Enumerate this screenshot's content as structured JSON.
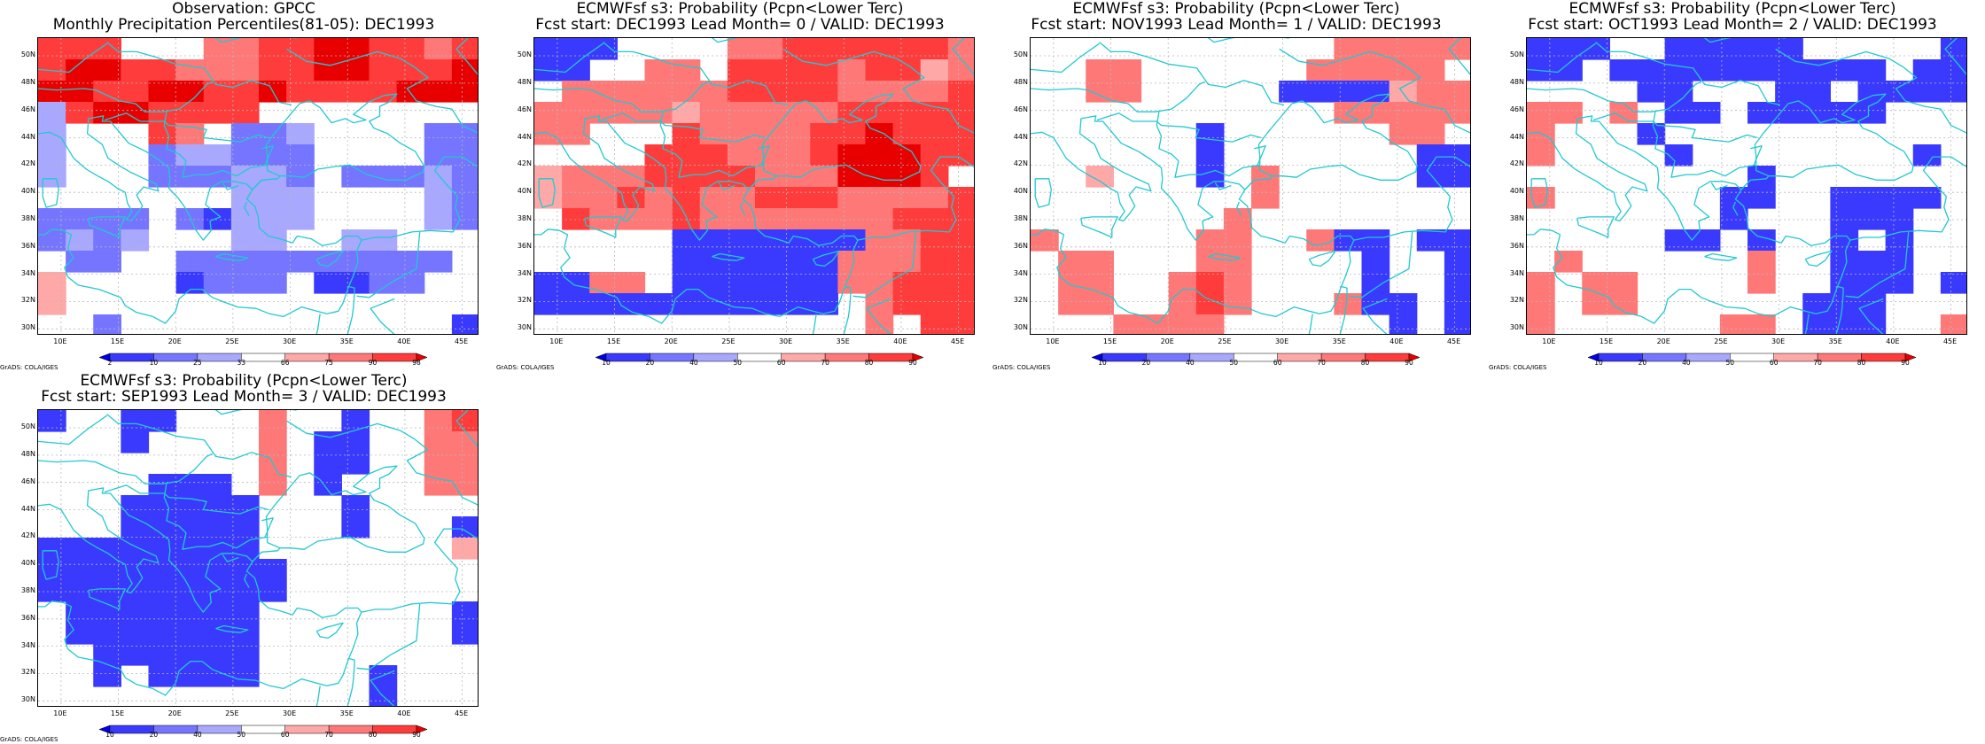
{
  "colors": {
    "coast": "#22c8d0",
    "grid": "#b8b8b8",
    "bins": [
      "#0000e8",
      "#3a3aff",
      "#7575ff",
      "#a8a8ff",
      "#ffffff",
      "#ffa8a8",
      "#ff7878",
      "#ff3c3c",
      "#e80000"
    ]
  },
  "ticks": {
    "lat": [
      "50N",
      "48N",
      "46N",
      "44N",
      "42N",
      "40N",
      "38N",
      "36N",
      "34N",
      "32N",
      "30N"
    ],
    "lon": [
      "10E",
      "15E",
      "20E",
      "25E",
      "30E",
      "35E",
      "40E",
      "45E"
    ]
  },
  "panels": [
    {
      "title1": "Observation: GPCC",
      "title2": "Monthly Precipitation Percentiles(81-05): DEC1993",
      "colorbar_labels": [
        "2",
        "10",
        "25",
        "33",
        "66",
        "75",
        "90",
        "98"
      ],
      "credit": "GrADS: COLA/IGES",
      "grid": [
        [
          7,
          7,
          7,
          4,
          4,
          4,
          6,
          6,
          7,
          7,
          8,
          8,
          7,
          7,
          6,
          7
        ],
        [
          7,
          8,
          8,
          7,
          7,
          6,
          6,
          6,
          7,
          7,
          8,
          8,
          7,
          7,
          7,
          8
        ],
        [
          8,
          8,
          7,
          7,
          8,
          8,
          7,
          7,
          8,
          7,
          7,
          7,
          7,
          8,
          8,
          8
        ],
        [
          3,
          7,
          8,
          8,
          7,
          7,
          7,
          7,
          4,
          4,
          4,
          4,
          4,
          4,
          4,
          4
        ],
        [
          3,
          4,
          4,
          4,
          7,
          6,
          4,
          2,
          2,
          3,
          4,
          4,
          4,
          4,
          2,
          2
        ],
        [
          3,
          4,
          4,
          4,
          2,
          3,
          3,
          2,
          2,
          2,
          4,
          4,
          4,
          4,
          2,
          2
        ],
        [
          3,
          4,
          4,
          4,
          2,
          2,
          2,
          3,
          3,
          2,
          4,
          2,
          2,
          2,
          3,
          2
        ],
        [
          4,
          4,
          4,
          4,
          4,
          4,
          4,
          3,
          3,
          3,
          4,
          4,
          4,
          4,
          3,
          2
        ],
        [
          2,
          2,
          2,
          2,
          4,
          2,
          1,
          3,
          3,
          3,
          4,
          4,
          4,
          4,
          3,
          2
        ],
        [
          2,
          3,
          2,
          3,
          4,
          4,
          4,
          3,
          3,
          4,
          4,
          3,
          3,
          4,
          4,
          4
        ],
        [
          4,
          2,
          2,
          4,
          4,
          2,
          2,
          2,
          2,
          2,
          2,
          2,
          2,
          2,
          2,
          4
        ],
        [
          5,
          4,
          4,
          4,
          4,
          1,
          2,
          2,
          2,
          4,
          1,
          1,
          2,
          2,
          4,
          4
        ],
        [
          5,
          4,
          4,
          4,
          4,
          4,
          4,
          4,
          4,
          4,
          4,
          4,
          4,
          4,
          4,
          4
        ],
        [
          4,
          4,
          2,
          4,
          4,
          4,
          4,
          4,
          4,
          4,
          4,
          4,
          4,
          4,
          4,
          1
        ]
      ]
    },
    {
      "title1": "ECMWFsf s3: Probability (Pcpn<Lower Terc)",
      "title2": "Fcst start: DEC1993  Lead Month= 0 / VALID: DEC1993",
      "colorbar_labels": [
        "10",
        "20",
        "40",
        "50",
        "60",
        "70",
        "80",
        "90"
      ],
      "credit": "GrADS: COLA/IGES",
      "grid": [
        [
          1,
          1,
          1,
          4,
          4,
          4,
          4,
          6,
          6,
          7,
          7,
          7,
          7,
          7,
          7,
          6
        ],
        [
          1,
          1,
          4,
          4,
          6,
          6,
          4,
          7,
          7,
          7,
          7,
          6,
          7,
          7,
          5,
          6
        ],
        [
          4,
          6,
          6,
          6,
          6,
          6,
          6,
          7,
          7,
          7,
          7,
          6,
          6,
          6,
          6,
          7
        ],
        [
          6,
          6,
          6,
          6,
          6,
          5,
          6,
          6,
          6,
          6,
          6,
          7,
          7,
          7,
          7,
          7
        ],
        [
          6,
          6,
          4,
          4,
          4,
          7,
          6,
          6,
          6,
          6,
          7,
          7,
          8,
          7,
          7,
          7
        ],
        [
          4,
          4,
          4,
          4,
          7,
          7,
          7,
          6,
          6,
          6,
          7,
          8,
          8,
          8,
          7,
          7
        ],
        [
          5,
          6,
          6,
          6,
          7,
          7,
          7,
          7,
          6,
          6,
          6,
          8,
          8,
          8,
          7,
          4
        ],
        [
          5,
          6,
          6,
          7,
          6,
          7,
          6,
          6,
          7,
          7,
          7,
          6,
          6,
          6,
          6,
          7
        ],
        [
          4,
          7,
          6,
          6,
          6,
          7,
          6,
          6,
          6,
          6,
          6,
          6,
          6,
          7,
          7,
          7
        ],
        [
          4,
          4,
          4,
          4,
          4,
          1,
          1,
          1,
          1,
          1,
          1,
          1,
          6,
          6,
          7,
          7
        ],
        [
          4,
          4,
          4,
          4,
          4,
          1,
          1,
          1,
          1,
          1,
          1,
          6,
          6,
          6,
          7,
          7
        ],
        [
          1,
          1,
          6,
          6,
          4,
          1,
          1,
          1,
          1,
          1,
          1,
          6,
          6,
          7,
          7,
          7
        ],
        [
          1,
          1,
          1,
          1,
          1,
          1,
          1,
          1,
          1,
          1,
          1,
          4,
          6,
          7,
          7,
          7
        ],
        [
          4,
          4,
          4,
          4,
          4,
          4,
          4,
          4,
          4,
          4,
          4,
          4,
          6,
          4,
          7,
          7
        ]
      ]
    },
    {
      "title1": "ECMWFsf s3: Probability (Pcpn<Lower Terc)",
      "title2": "Fcst start: NOV1993  Lead Month= 1 / VALID: DEC1993",
      "colorbar_labels": [
        "10",
        "20",
        "40",
        "50",
        "60",
        "70",
        "80",
        "90"
      ],
      "credit": "GrADS: COLA/IGES",
      "grid": [
        [
          4,
          4,
          4,
          4,
          4,
          4,
          4,
          4,
          4,
          4,
          4,
          6,
          6,
          6,
          6,
          6
        ],
        [
          4,
          4,
          6,
          6,
          4,
          4,
          4,
          4,
          4,
          4,
          6,
          6,
          6,
          6,
          6,
          4
        ],
        [
          4,
          4,
          6,
          6,
          4,
          4,
          4,
          4,
          4,
          1,
          1,
          1,
          1,
          5,
          6,
          6
        ],
        [
          4,
          4,
          4,
          4,
          4,
          4,
          4,
          4,
          4,
          4,
          4,
          6,
          6,
          6,
          6,
          6
        ],
        [
          4,
          4,
          4,
          4,
          4,
          4,
          1,
          4,
          4,
          4,
          4,
          4,
          4,
          6,
          6,
          4
        ],
        [
          4,
          4,
          4,
          4,
          4,
          4,
          1,
          4,
          4,
          4,
          4,
          4,
          4,
          4,
          1,
          1
        ],
        [
          4,
          4,
          5,
          4,
          4,
          4,
          1,
          4,
          6,
          4,
          4,
          4,
          4,
          4,
          1,
          1
        ],
        [
          4,
          4,
          4,
          4,
          4,
          4,
          4,
          4,
          6,
          4,
          4,
          4,
          4,
          4,
          4,
          4
        ],
        [
          4,
          4,
          4,
          4,
          4,
          4,
          4,
          6,
          4,
          4,
          4,
          4,
          4,
          4,
          4,
          4
        ],
        [
          6,
          4,
          4,
          4,
          4,
          4,
          6,
          6,
          4,
          4,
          6,
          1,
          1,
          4,
          1,
          1
        ],
        [
          4,
          6,
          6,
          4,
          4,
          4,
          6,
          6,
          4,
          4,
          4,
          4,
          1,
          4,
          4,
          1
        ],
        [
          4,
          6,
          6,
          4,
          4,
          6,
          7,
          6,
          4,
          4,
          4,
          4,
          1,
          4,
          4,
          1
        ],
        [
          4,
          6,
          6,
          4,
          4,
          6,
          7,
          6,
          4,
          4,
          4,
          6,
          1,
          1,
          4,
          1
        ],
        [
          4,
          4,
          4,
          6,
          6,
          6,
          6,
          4,
          4,
          4,
          4,
          4,
          4,
          1,
          4,
          1
        ]
      ]
    },
    {
      "title1": "ECMWFsf s3: Probability (Pcpn<Lower Terc)",
      "title2": "Fcst start: OCT1993  Lead Month= 2 / VALID: DEC1993",
      "colorbar_labels": [
        "10",
        "20",
        "40",
        "50",
        "60",
        "70",
        "80",
        "90"
      ],
      "credit": "GrADS: COLA/IGES",
      "grid": [
        [
          1,
          1,
          1,
          4,
          4,
          1,
          1,
          1,
          1,
          1,
          4,
          4,
          4,
          4,
          4,
          1
        ],
        [
          1,
          1,
          4,
          1,
          1,
          1,
          1,
          1,
          1,
          1,
          1,
          1,
          1,
          4,
          1,
          1
        ],
        [
          4,
          4,
          4,
          4,
          1,
          1,
          4,
          4,
          4,
          1,
          1,
          4,
          1,
          1,
          1,
          1
        ],
        [
          6,
          6,
          4,
          6,
          4,
          1,
          1,
          4,
          1,
          1,
          1,
          1,
          1,
          4,
          4,
          4
        ],
        [
          6,
          4,
          4,
          4,
          1,
          4,
          4,
          4,
          4,
          4,
          4,
          4,
          4,
          4,
          4,
          4
        ],
        [
          6,
          4,
          4,
          4,
          4,
          1,
          4,
          4,
          4,
          4,
          4,
          4,
          4,
          4,
          1,
          4
        ],
        [
          4,
          4,
          4,
          4,
          4,
          4,
          4,
          4,
          1,
          4,
          4,
          4,
          4,
          4,
          4,
          4
        ],
        [
          6,
          4,
          4,
          4,
          4,
          4,
          4,
          1,
          1,
          4,
          4,
          1,
          1,
          1,
          1,
          4
        ],
        [
          4,
          4,
          4,
          4,
          4,
          4,
          4,
          1,
          4,
          4,
          4,
          1,
          1,
          1,
          4,
          4
        ],
        [
          4,
          4,
          4,
          4,
          4,
          1,
          1,
          4,
          1,
          4,
          4,
          1,
          4,
          1,
          4,
          4
        ],
        [
          4,
          6,
          4,
          4,
          4,
          4,
          4,
          4,
          6,
          4,
          4,
          1,
          1,
          1,
          4,
          4
        ],
        [
          6,
          4,
          6,
          6,
          4,
          4,
          4,
          4,
          6,
          4,
          4,
          1,
          1,
          1,
          4,
          1
        ],
        [
          6,
          4,
          6,
          6,
          4,
          4,
          4,
          4,
          4,
          4,
          1,
          1,
          1,
          4,
          4,
          4
        ],
        [
          6,
          4,
          4,
          4,
          4,
          4,
          4,
          6,
          6,
          4,
          1,
          1,
          1,
          4,
          4,
          6
        ]
      ]
    },
    {
      "title1": "ECMWFsf s3: Probability (Pcpn<Lower Terc)",
      "title2": "Fcst start: SEP1993  Lead Month= 3 / VALID: DEC1993",
      "colorbar_labels": [
        "10",
        "20",
        "40",
        "50",
        "60",
        "70",
        "80",
        "90"
      ],
      "credit": "GrADS: COLA/IGES",
      "grid": [
        [
          1,
          4,
          4,
          1,
          1,
          4,
          4,
          4,
          6,
          4,
          4,
          1,
          4,
          4,
          6,
          7
        ],
        [
          4,
          4,
          4,
          1,
          4,
          4,
          4,
          4,
          6,
          4,
          1,
          1,
          4,
          4,
          6,
          6
        ],
        [
          4,
          4,
          4,
          4,
          4,
          4,
          4,
          4,
          6,
          4,
          1,
          1,
          4,
          4,
          6,
          6
        ],
        [
          4,
          4,
          4,
          4,
          1,
          1,
          1,
          4,
          6,
          4,
          1,
          4,
          4,
          4,
          6,
          6
        ],
        [
          4,
          4,
          4,
          1,
          1,
          1,
          1,
          1,
          4,
          4,
          4,
          1,
          4,
          4,
          4,
          4
        ],
        [
          4,
          4,
          4,
          1,
          1,
          1,
          1,
          1,
          4,
          4,
          4,
          1,
          4,
          4,
          4,
          1
        ],
        [
          1,
          1,
          1,
          1,
          1,
          1,
          1,
          1,
          4,
          4,
          4,
          4,
          4,
          4,
          4,
          5
        ],
        [
          1,
          1,
          1,
          1,
          1,
          1,
          1,
          1,
          1,
          4,
          4,
          4,
          4,
          4,
          4,
          4
        ],
        [
          1,
          1,
          1,
          1,
          1,
          1,
          1,
          1,
          1,
          4,
          4,
          4,
          4,
          4,
          4,
          4
        ],
        [
          4,
          1,
          1,
          1,
          1,
          1,
          1,
          1,
          4,
          4,
          4,
          4,
          4,
          4,
          4,
          1
        ],
        [
          4,
          1,
          1,
          1,
          1,
          1,
          1,
          1,
          4,
          4,
          4,
          4,
          4,
          4,
          4,
          1
        ],
        [
          4,
          4,
          1,
          1,
          1,
          1,
          1,
          1,
          4,
          4,
          4,
          4,
          4,
          4,
          4,
          4
        ],
        [
          4,
          4,
          1,
          4,
          1,
          1,
          1,
          1,
          4,
          4,
          4,
          4,
          1,
          4,
          4,
          4
        ],
        [
          4,
          4,
          4,
          4,
          4,
          4,
          4,
          4,
          4,
          4,
          4,
          4,
          1,
          4,
          4,
          4
        ]
      ]
    }
  ]
}
